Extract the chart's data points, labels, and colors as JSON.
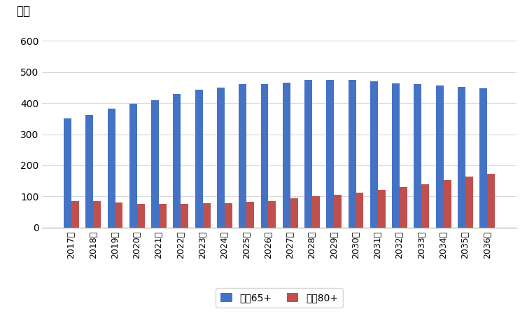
{
  "years": [
    "2017年",
    "2018年",
    "2019年",
    "2020年",
    "2021年",
    "2022年",
    "2023年",
    "2024年",
    "2025年",
    "2026年",
    "2027年",
    "2028年",
    "2029年",
    "2030年",
    "2031年",
    "2032年",
    "2033年",
    "2034年",
    "2035年",
    "2036年"
  ],
  "series65": [
    350,
    362,
    382,
    397,
    410,
    430,
    443,
    450,
    460,
    460,
    465,
    475,
    475,
    475,
    470,
    463,
    460,
    457,
    452,
    447
  ],
  "series80": [
    84,
    84,
    80,
    77,
    77,
    77,
    78,
    78,
    82,
    85,
    93,
    100,
    106,
    112,
    120,
    130,
    140,
    153,
    163,
    172
  ],
  "bar_color_65": "#4472C4",
  "bar_color_80": "#C0504D",
  "ylabel": "万人",
  "ylim_min": 0,
  "ylim_max": 650,
  "yticks": [
    0,
    100,
    200,
    300,
    400,
    500,
    600
  ],
  "legend_65": "常住65+",
  "legend_80": "常住80+",
  "background_color": "#FFFFFF",
  "grid_color": "#D9D9D9",
  "bar_width": 0.35
}
